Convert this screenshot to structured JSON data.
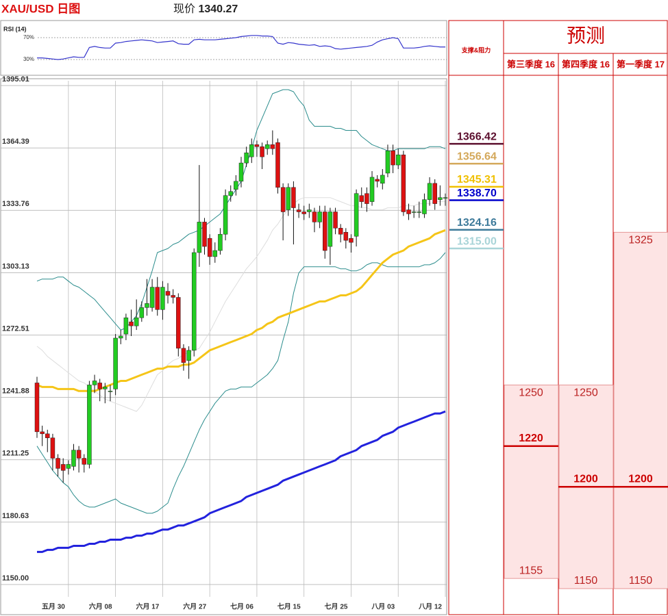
{
  "chart_data": [
    {
      "type": "candlestick",
      "title": "XAU/USD 日图",
      "price_label": "现价",
      "price": 1340.27,
      "categories": [
        null,
        null,
        null,
        null,
        null,
        null,
        "五月 30",
        null,
        null,
        null,
        null,
        null,
        null,
        null,
        null,
        "六月 08",
        null,
        null,
        null,
        null,
        null,
        null,
        null,
        null,
        "六月 17",
        null,
        null,
        null,
        null,
        null,
        null,
        null,
        null,
        "六月 27",
        null,
        null,
        null,
        null,
        null,
        null,
        null,
        null,
        "七月 06",
        null,
        null,
        null,
        null,
        null,
        null,
        null,
        null,
        "七月 15",
        null,
        null,
        null,
        null,
        null,
        null,
        null,
        null,
        "七月 25",
        null,
        null,
        null,
        null,
        null,
        null,
        null,
        null,
        "八月 03",
        null,
        null,
        null,
        null,
        null,
        null,
        null,
        null,
        "八月 12"
      ],
      "open": [
        1249,
        1225,
        1224,
        1222,
        1212,
        1209,
        1207,
        1208,
        1216,
        1212,
        1209,
        1248,
        1249,
        1246,
        1245,
        1246,
        1271,
        1273,
        1279,
        1277,
        1281,
        1286,
        1286,
        1296,
        1285,
        1294,
        1292,
        1291,
        1266,
        1260,
        1265,
        1313,
        1328,
        1320,
        1311,
        1314,
        1322,
        1341,
        1344,
        1348,
        1357,
        1360,
        1366,
        1365,
        1364,
        1366,
        1367,
        1345,
        1334,
        1345,
        1334,
        1333,
        1333,
        1333,
        1328,
        1333,
        1316,
        1333,
        1325,
        1323,
        1320,
        1321,
        1341,
        1342,
        1338,
        1349,
        1347,
        1352,
        1363,
        1356,
        1361,
        1334,
        1333,
        1333,
        1332,
        1339,
        1347,
        1339,
        1340
      ],
      "high": [
        1252,
        1228,
        1226,
        1224,
        1214,
        1212,
        1211,
        1219,
        1218,
        1214,
        1250,
        1253,
        1251,
        1249,
        1248,
        1273,
        1275,
        1283,
        1285,
        1290,
        1289,
        1300,
        1300,
        1301,
        1299,
        1298,
        1295,
        1293,
        1268,
        1267,
        1315,
        1356,
        1330,
        1322,
        1318,
        1325,
        1344,
        1346,
        1351,
        1360,
        1365,
        1369,
        1368,
        1367,
        1368,
        1373,
        1369,
        1347,
        1347,
        1348,
        1337,
        1336,
        1337,
        1335,
        1336,
        1336,
        1335,
        1335,
        1327,
        1325,
        1322,
        1344,
        1345,
        1345,
        1353,
        1351,
        1354,
        1366,
        1366,
        1364,
        1363,
        1337,
        1336,
        1338,
        1342,
        1350,
        1349,
        1346,
        1342
      ],
      "low": [
        1222,
        1218,
        1215,
        1206,
        1203,
        1200,
        1204,
        1206,
        1205,
        1205,
        1207,
        1244,
        1240,
        1239,
        1240,
        1243,
        1268,
        1270,
        1272,
        1275,
        1279,
        1282,
        1284,
        1282,
        1280,
        1288,
        1288,
        1262,
        1255,
        1251,
        1262,
        1306,
        1312,
        1307,
        1308,
        1312,
        1319,
        1338,
        1341,
        1345,
        1355,
        1357,
        1360,
        1354,
        1361,
        1361,
        1342,
        1319,
        1331,
        1317,
        1330,
        1329,
        1330,
        1323,
        1325,
        1310,
        1307,
        1322,
        1318,
        1315,
        1313,
        1316,
        1335,
        1333,
        1336,
        1345,
        1344,
        1350,
        1352,
        1354,
        1331,
        1329,
        1330,
        1330,
        1330,
        1336,
        1334,
        1336,
        1336
      ],
      "close": [
        1225,
        1224,
        1222,
        1212,
        1207,
        1206,
        1209,
        1216,
        1212,
        1209,
        1248,
        1250,
        1246,
        1247,
        1245,
        1271,
        1272,
        1281,
        1277,
        1281,
        1286,
        1288,
        1296,
        1285,
        1296,
        1292,
        1291,
        1266,
        1259,
        1265,
        1313,
        1328,
        1316,
        1311,
        1314,
        1322,
        1341,
        1343,
        1348,
        1357,
        1362,
        1366,
        1365,
        1360,
        1366,
        1364,
        1345,
        1333,
        1345,
        1335,
        1333,
        1332,
        1334,
        1328,
        1333,
        1314,
        1333,
        1325,
        1322,
        1319,
        1318,
        1342,
        1338,
        1337,
        1350,
        1348,
        1351,
        1363,
        1356,
        1361,
        1333,
        1332,
        1333,
        1333,
        1339,
        1347,
        1337,
        1340,
        1340
      ],
      "up_color": "#22cc22",
      "down_color": "#dd1111",
      "series": [
        {
          "color": "#2a8c8c",
          "line_width": 1,
          "values": [
            1299,
            1300,
            1300,
            1300,
            1301,
            1301,
            1299,
            1297,
            1296,
            1294,
            1292,
            1290,
            1287,
            1284,
            1281,
            1278,
            1275,
            1276,
            1279,
            1282,
            1288,
            1296,
            1304,
            1313,
            1314,
            1315,
            1317,
            1318,
            1320,
            1322,
            1323,
            1324,
            1326,
            1328,
            1330,
            1332,
            1336,
            1340,
            1344,
            1348,
            1356,
            1364,
            1373,
            1379,
            1385,
            1391,
            1392,
            1393,
            1393,
            1392,
            1388,
            1385,
            1378,
            1375,
            1375,
            1375,
            1375,
            1374,
            1374,
            1373,
            1373,
            1373,
            1370,
            1368,
            1366,
            1365,
            1364,
            1363,
            1363,
            1364,
            1364,
            1364,
            1364,
            1364,
            1364,
            1365,
            1365,
            1365,
            1364
          ]
        },
        {
          "color": "#2a8c8c",
          "line_width": 1,
          "values": [
            1218,
            1214,
            1210,
            1206,
            1203,
            1200,
            1198,
            1194,
            1191,
            1189,
            1188,
            1188,
            1189,
            1190,
            1191,
            1192,
            1190,
            1189,
            1188,
            1187,
            1186,
            1185,
            1185,
            1186,
            1188,
            1190,
            1197,
            1203,
            1208,
            1214,
            1220,
            1226,
            1231,
            1235,
            1239,
            1242,
            1245,
            1246,
            1246,
            1247,
            1247,
            1247,
            1249,
            1251,
            1253,
            1256,
            1260,
            1270,
            1279,
            1293,
            1303,
            1306,
            1306,
            1306,
            1306,
            1306,
            1306,
            1306,
            1305,
            1305,
            1304,
            1304,
            1305,
            1307,
            1308,
            1308,
            1307,
            1306,
            1306,
            1306,
            1306,
            1306,
            1306,
            1306,
            1307,
            1307,
            1308,
            1310,
            1313
          ]
        },
        {
          "color": "#dddddd",
          "line_width": 1,
          "values": [
            1267,
            1265,
            1262,
            1260,
            1258,
            1256,
            1254,
            1252,
            1250,
            1249,
            1247,
            1245,
            1243,
            1241,
            1240,
            1239,
            1238,
            1237,
            1236,
            1235,
            1238,
            1243,
            1248,
            1253,
            1255,
            1258,
            1260,
            1261,
            1263,
            1264,
            1265,
            1266,
            1270,
            1274,
            1279,
            1284,
            1289,
            1293,
            1297,
            1301,
            1305,
            1308,
            1311,
            1315,
            1319,
            1324,
            1327,
            1331,
            1334,
            1337,
            1339,
            1340,
            1340,
            1340,
            1340,
            1340,
            1340,
            1339,
            1338,
            1337,
            1336,
            1336,
            1335,
            1335,
            1334,
            1334,
            1334,
            1335,
            1335,
            1335,
            1336,
            1336,
            1336,
            1337,
            1337,
            1337,
            1338,
            1338,
            1338
          ]
        },
        {
          "color": "#f5c518",
          "line_width": 3,
          "values": [
            1248,
            1247,
            1247,
            1247,
            1246,
            1246,
            1246,
            1246,
            1245,
            1245,
            1245,
            1245,
            1246,
            1247,
            1248,
            1249,
            1250,
            1250,
            1251,
            1252,
            1253,
            1254,
            1255,
            1256,
            1256,
            1257,
            1257,
            1257,
            1258,
            1258,
            1259,
            1261,
            1263,
            1265,
            1266,
            1267,
            1268,
            1269,
            1270,
            1271,
            1272,
            1273,
            1275,
            1276,
            1278,
            1279,
            1281,
            1282,
            1283,
            1284,
            1285,
            1286,
            1287,
            1288,
            1289,
            1289,
            1290,
            1291,
            1292,
            1292,
            1293,
            1294,
            1296,
            1299,
            1302,
            1305,
            1308,
            1310,
            1312,
            1313,
            1314,
            1316,
            1317,
            1318,
            1319,
            1320,
            1322,
            1323,
            1324
          ]
        },
        {
          "color": "#2222dd",
          "line_width": 3,
          "values": [
            1166,
            1166,
            1167,
            1167,
            1168,
            1168,
            1168,
            1169,
            1169,
            1169,
            1170,
            1170,
            1171,
            1171,
            1172,
            1172,
            1172,
            1173,
            1173,
            1174,
            1174,
            1175,
            1175,
            1176,
            1177,
            1177,
            1178,
            1179,
            1179,
            1180,
            1181,
            1182,
            1183,
            1185,
            1186,
            1187,
            1188,
            1189,
            1190,
            1191,
            1193,
            1194,
            1195,
            1196,
            1197,
            1198,
            1199,
            1201,
            1202,
            1203,
            1204,
            1205,
            1206,
            1207,
            1208,
            1209,
            1210,
            1211,
            1213,
            1214,
            1215,
            1216,
            1218,
            1219,
            1220,
            1221,
            1223,
            1224,
            1225,
            1227,
            1228,
            1229,
            1230,
            1231,
            1232,
            1233,
            1234,
            1234,
            1235
          ]
        }
      ],
      "ylim": [
        1150,
        1395.01
      ],
      "yticks": [
        {
          "value": 1150,
          "label": "1150.00"
        },
        1180.63,
        1211.25,
        1241.88,
        1272.51,
        1303.13,
        1333.76,
        1364.39,
        1395.01
      ],
      "grid": true,
      "levels": {
        "values": [
          1366.42,
          1356.64,
          1345.31,
          1338.7,
          1324.16,
          1315
        ],
        "value_labels": [
          "1366.42",
          "1356.64",
          "1345.31",
          "1338.70",
          "1324.16",
          "1315.00"
        ],
        "colors": [
          "#5c0f2e",
          "#d4a85a",
          "#f0c000",
          "#0000cc",
          "#3d7a9a",
          "#a9d4d8"
        ]
      }
    },
    {
      "type": "line",
      "title": "RSI (14)",
      "color": "#3333cc",
      "values": [
        33,
        33,
        32,
        31,
        30,
        31,
        33,
        35,
        34,
        34,
        52,
        54,
        52,
        51,
        51,
        60,
        61,
        63,
        64,
        65,
        66,
        65,
        64,
        61,
        62,
        63,
        64,
        59,
        58,
        58,
        66,
        67,
        66,
        66,
        66,
        67,
        68,
        69,
        70,
        72,
        73,
        74,
        74,
        73,
        73,
        72,
        60,
        58,
        61,
        60,
        58,
        57,
        56,
        57,
        54,
        55,
        54,
        50,
        49,
        50,
        51,
        52,
        53,
        54,
        56,
        62,
        66,
        68,
        70,
        68,
        51,
        51,
        51,
        52,
        54,
        55,
        54,
        53,
        53
      ],
      "ylim": [
        0,
        100
      ],
      "yticks": [
        {
          "value": 30,
          "label": "30%"
        },
        {
          "value": 70,
          "label": "70%"
        }
      ]
    }
  ],
  "forecast": {
    "sr_header": "支撑&阻力",
    "title": "预测",
    "columns": [
      {
        "name": "第三季度 16",
        "high": 1250,
        "target": 1220,
        "low": 1155
      },
      {
        "name": "第四季度 16",
        "high": 1250,
        "target": 1200,
        "low": 1150
      },
      {
        "name": "第一季度 17",
        "high": 1325,
        "target": 1200,
        "low": 1150
      }
    ]
  }
}
